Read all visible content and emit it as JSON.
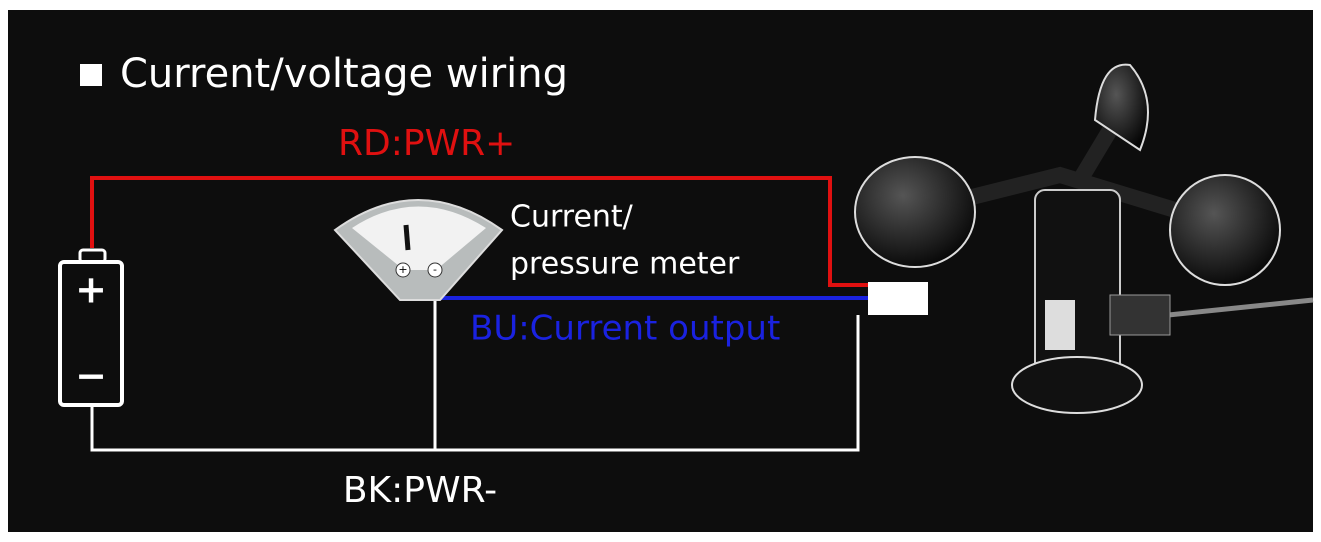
{
  "title": "Current/voltage wiring",
  "wires": {
    "red": "RD:PWR+",
    "blue": "BU:Current output",
    "black": "BK:PWR-"
  },
  "meter": {
    "label_line1": "Current/",
    "label_line2": "pressure meter",
    "plus": "+",
    "minus": "-"
  },
  "battery": {
    "plus": "+",
    "minus": "−"
  }
}
